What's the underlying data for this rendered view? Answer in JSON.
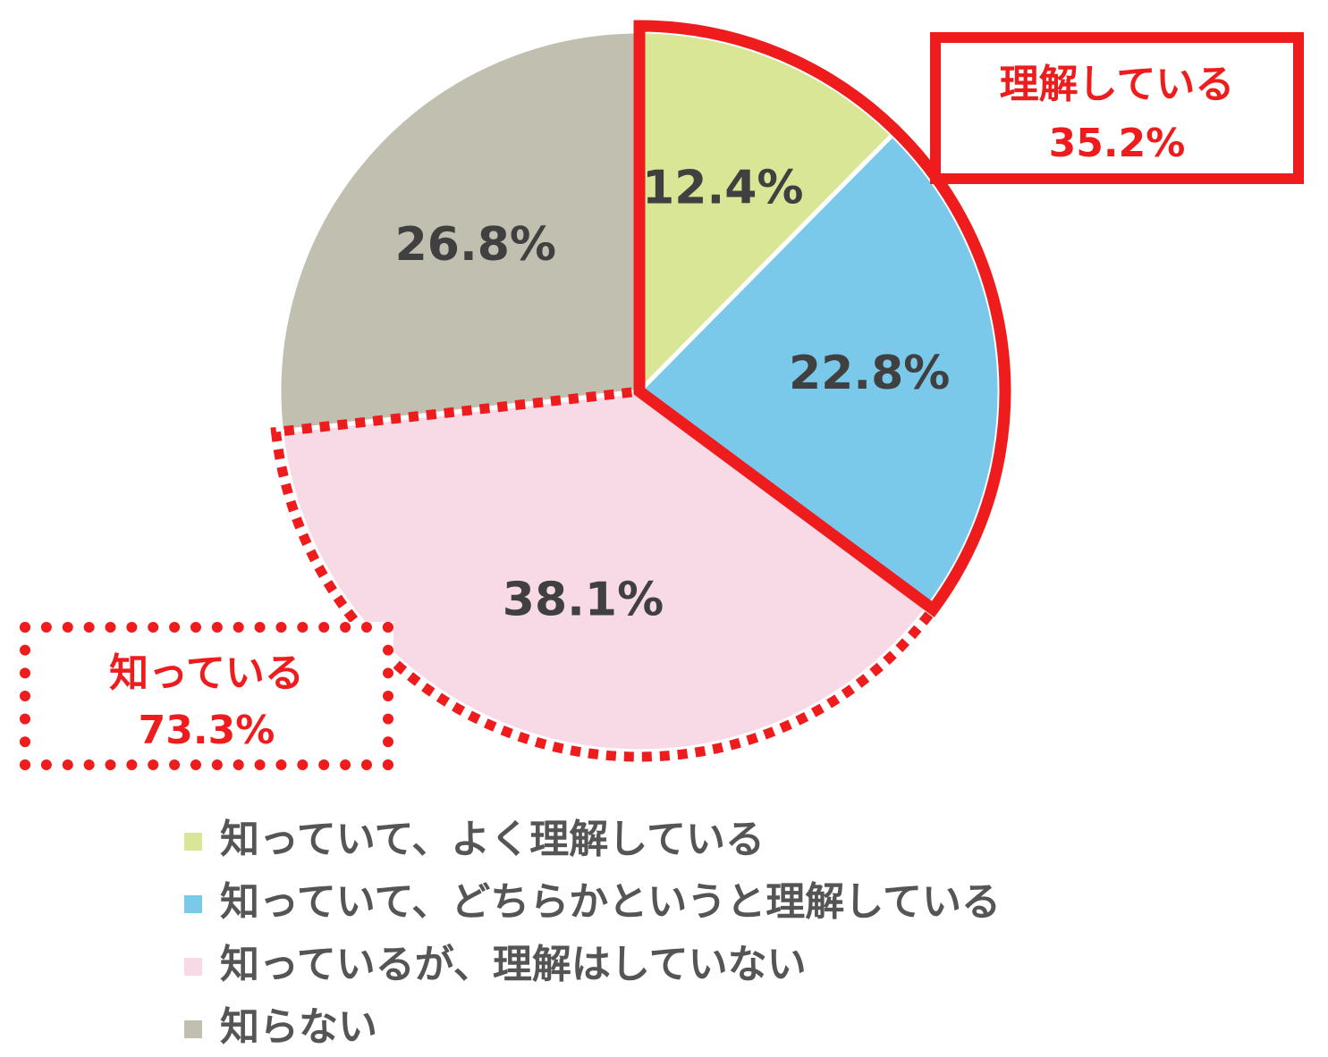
{
  "chart_data": {
    "type": "pie",
    "categories": [
      "知っていて、よく理解している",
      "知っていて、どちらかというと理解している",
      "知っているが、理解はしていない",
      "知らない"
    ],
    "values": [
      12.4,
      22.8,
      38.1,
      26.8
    ],
    "data_labels": [
      "12.4%",
      "22.8%",
      "38.1%",
      "26.8%"
    ],
    "colors": [
      "#d9e696",
      "#7ac8ea",
      "#f8d9e6",
      "#c1bfb0"
    ],
    "start_angle": "12 o'clock, clockwise",
    "legend_position": "bottom",
    "annotations": [
      {
        "title": "理解している",
        "value": "35.2%",
        "style": "solid-red-box",
        "covers": [
          0,
          1
        ]
      },
      {
        "title": "知っている",
        "value": "73.3%",
        "style": "dotted-red-box",
        "covers": [
          0,
          1,
          2
        ]
      }
    ],
    "highlight_color": "#ee1c1c"
  }
}
